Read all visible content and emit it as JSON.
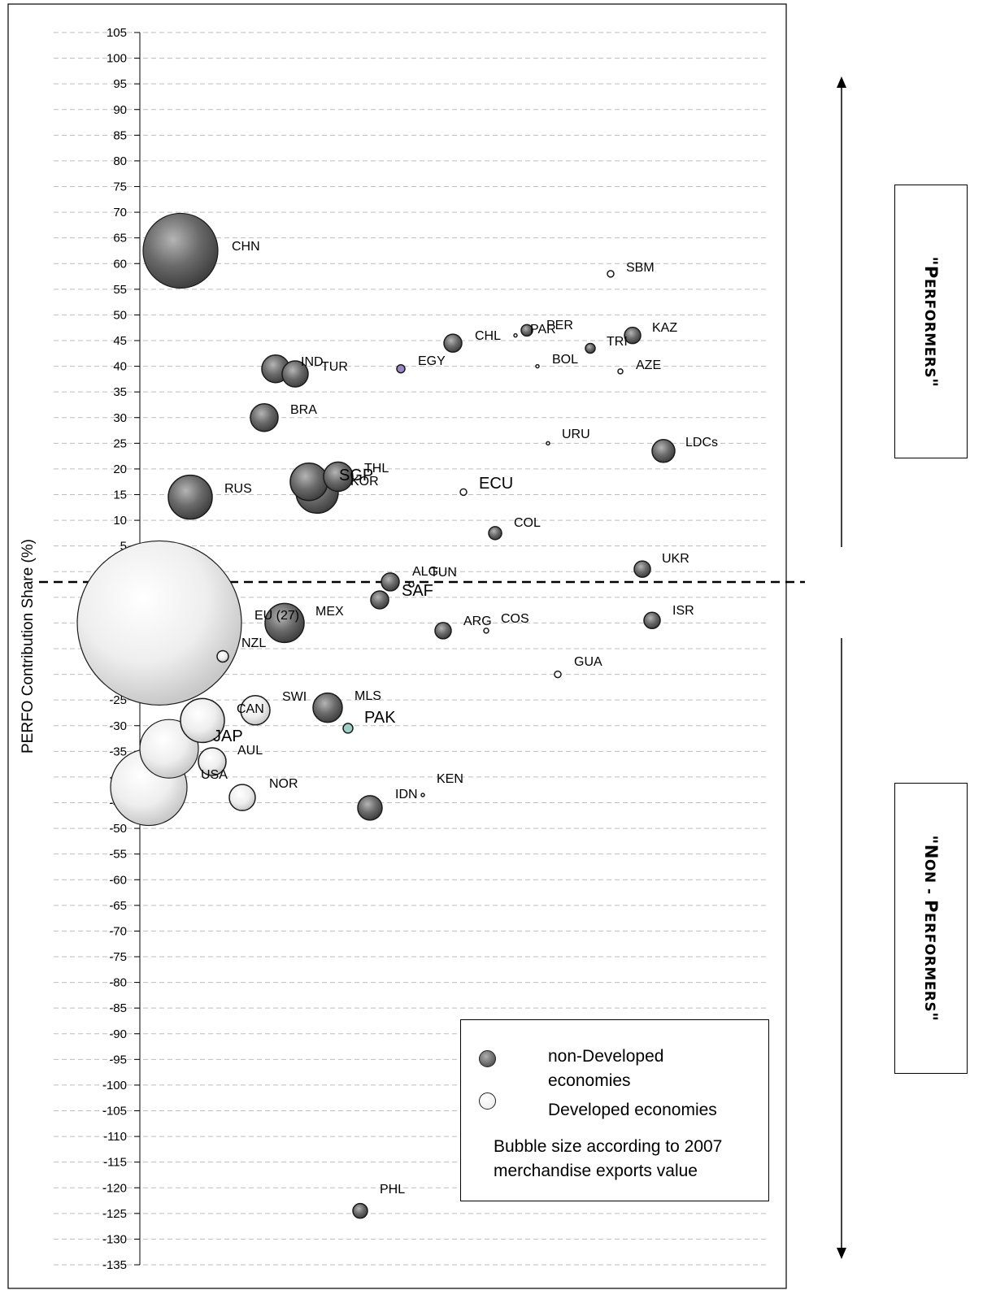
{
  "chart_data": {
    "type": "bubble",
    "ylabel": "PERFO Contribution Share (%)",
    "ylim": [
      -135,
      105
    ],
    "ytick_step": 5,
    "threshold_y": -4.5,
    "grid": "horizontal dashed",
    "categories": [
      "non-Developed",
      "Developed"
    ],
    "colors": {
      "non-Developed": "#5f5f5f",
      "Developed": "#f2f2f2",
      "EGY": "#9b86c4",
      "PAK": "#9fcfc4"
    },
    "points": [
      {
        "label": "CHN",
        "y": 62.5,
        "size": 46,
        "group": "non-Developed"
      },
      {
        "label": "SBM",
        "y": 58,
        "size": 4,
        "group": "non-Developed"
      },
      {
        "label": "PER",
        "y": 47,
        "size": 7,
        "group": "non-Developed"
      },
      {
        "label": "PAR",
        "y": 46,
        "size": 2,
        "group": "non-Developed"
      },
      {
        "label": "KAZ",
        "y": 46,
        "size": 10,
        "group": "non-Developed"
      },
      {
        "label": "CHL",
        "y": 44.5,
        "size": 11,
        "group": "non-Developed"
      },
      {
        "label": "TRI",
        "y": 43.5,
        "size": 6,
        "group": "non-Developed"
      },
      {
        "label": "IND",
        "y": 39.5,
        "size": 17,
        "group": "non-Developed"
      },
      {
        "label": "TUR",
        "y": 38.5,
        "size": 16,
        "group": "non-Developed"
      },
      {
        "label": "EGY",
        "y": 39.5,
        "size": 5,
        "group": "non-Developed"
      },
      {
        "label": "BOL",
        "y": 40,
        "size": 2,
        "group": "non-Developed"
      },
      {
        "label": "AZE",
        "y": 39,
        "size": 3,
        "group": "non-Developed"
      },
      {
        "label": "BRA",
        "y": 30,
        "size": 17,
        "group": "non-Developed"
      },
      {
        "label": "URU",
        "y": 25,
        "size": 2,
        "group": "non-Developed"
      },
      {
        "label": "LDCs",
        "y": 23.5,
        "size": 14,
        "group": "non-Developed"
      },
      {
        "label": "SGP",
        "y": 17.5,
        "size": 23,
        "group": "non-Developed"
      },
      {
        "label": "KOR",
        "y": 15.5,
        "size": 26,
        "group": "non-Developed"
      },
      {
        "label": "THL",
        "y": 18.5,
        "size": 18,
        "group": "non-Developed"
      },
      {
        "label": "RUS",
        "y": 14.5,
        "size": 27,
        "group": "non-Developed"
      },
      {
        "label": "ECU",
        "y": 15.5,
        "size": 4,
        "group": "non-Developed"
      },
      {
        "label": "COL",
        "y": 7.5,
        "size": 8,
        "group": "non-Developed"
      },
      {
        "label": "UKR",
        "y": 0.5,
        "size": 10,
        "group": "non-Developed"
      },
      {
        "label": "ALG",
        "y": -2,
        "size": 11,
        "group": "non-Developed"
      },
      {
        "label": "TUN",
        "y": -2.5,
        "size": 3,
        "group": "non-Developed"
      },
      {
        "label": "SAF",
        "y": -5.5,
        "size": 11,
        "group": "non-Developed"
      },
      {
        "label": "EU (27)",
        "y": -10,
        "size": 101,
        "group": "Developed"
      },
      {
        "label": "MEX",
        "y": -10,
        "size": 24,
        "group": "non-Developed"
      },
      {
        "label": "ISR",
        "y": -9.5,
        "size": 10,
        "group": "non-Developed"
      },
      {
        "label": "ARG",
        "y": -11.5,
        "size": 10,
        "group": "non-Developed"
      },
      {
        "label": "COS",
        "y": -11.5,
        "size": 3,
        "group": "non-Developed"
      },
      {
        "label": "NZL",
        "y": -16.5,
        "size": 7,
        "group": "Developed"
      },
      {
        "label": "GUA",
        "y": -20,
        "size": 4,
        "group": "non-Developed"
      },
      {
        "label": "SWI",
        "y": -27,
        "size": 18,
        "group": "Developed"
      },
      {
        "label": "MLS",
        "y": -26.5,
        "size": 18,
        "group": "non-Developed"
      },
      {
        "label": "CAN",
        "y": -29,
        "size": 27,
        "group": "Developed"
      },
      {
        "label": "PAK",
        "y": -30.5,
        "size": 6,
        "group": "non-Developed"
      },
      {
        "label": "JAP",
        "y": -34.5,
        "size": 36,
        "group": "Developed"
      },
      {
        "label": "AUL",
        "y": -37,
        "size": 17,
        "group": "Developed"
      },
      {
        "label": "USA",
        "y": -42,
        "size": 47,
        "group": "Developed"
      },
      {
        "label": "NOR",
        "y": -44,
        "size": 16,
        "group": "Developed"
      },
      {
        "label": "KEN",
        "y": -43.5,
        "size": 2,
        "group": "non-Developed"
      },
      {
        "label": "IDN",
        "y": -46,
        "size": 15,
        "group": "non-Developed"
      },
      {
        "label": "PHL",
        "y": -124.5,
        "size": 9,
        "group": "non-Developed"
      }
    ]
  },
  "side": {
    "performers": {
      "quote_open": "\"",
      "cap": "P",
      "rest": "ERFORMERS",
      "quote_close": "\""
    },
    "non_performers": {
      "quote_open": "\"",
      "cap1": "N",
      "rest1": "ON - ",
      "cap2": "P",
      "rest2": "ERFORMERS",
      "quote_close": "\""
    }
  },
  "legend": {
    "non_developed_line1": "non-Developed",
    "non_developed_line2": "economies",
    "developed": "Developed economies",
    "note_line1": "Bubble size according to 2007",
    "note_line2": "merchandise exports value"
  }
}
